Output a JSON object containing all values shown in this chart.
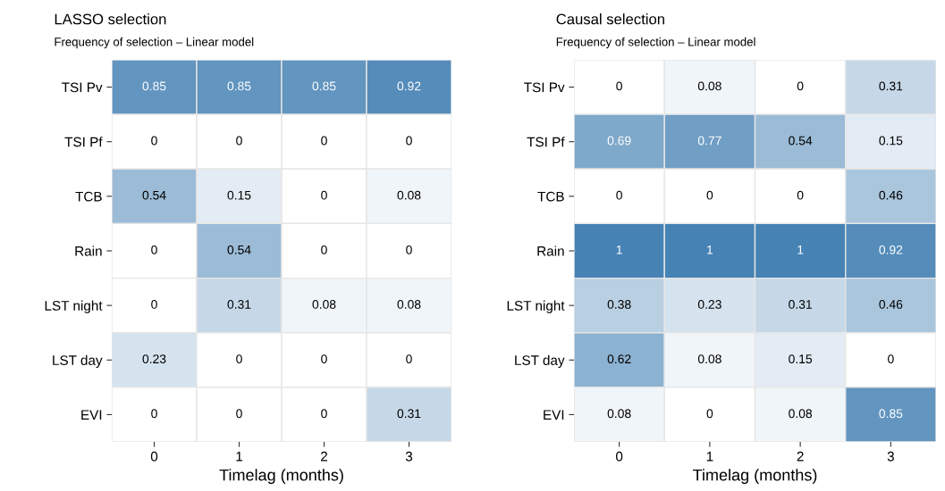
{
  "chart_data": [
    {
      "type": "heatmap",
      "title": "LASSO selection",
      "subtitle": "Frequency of selection – Linear model",
      "xlabel": "Timelag (months)",
      "categories": [
        "0",
        "1",
        "2",
        "3"
      ],
      "y_categories": [
        "TSI Pv",
        "TSI Pf",
        "TCB",
        "Rain",
        "LST night",
        "LST day",
        "EVI"
      ],
      "cells": [
        [
          0.85,
          0.85,
          0.85,
          0.92
        ],
        [
          0,
          0,
          0,
          0
        ],
        [
          0.54,
          0.15,
          0,
          0.08
        ],
        [
          0,
          0.54,
          0,
          0
        ],
        [
          0,
          0.31,
          0.08,
          0.08
        ],
        [
          0.23,
          0,
          0,
          0
        ],
        [
          0,
          0,
          0,
          0.31
        ]
      ],
      "data_labels": true
    },
    {
      "type": "heatmap",
      "title": "Causal selection",
      "subtitle": "Frequency of selection – Linear model",
      "xlabel": "Timelag (months)",
      "categories": [
        "0",
        "1",
        "2",
        "3"
      ],
      "y_categories": [
        "TSI Pv",
        "TSI Pf",
        "TCB",
        "Rain",
        "LST night",
        "LST day",
        "EVI"
      ],
      "cells": [
        [
          0,
          0.08,
          0,
          0.31
        ],
        [
          0.69,
          0.77,
          0.54,
          0.15
        ],
        [
          0,
          0,
          0,
          0.46
        ],
        [
          1,
          1,
          1,
          0.92
        ],
        [
          0.38,
          0.23,
          0.31,
          0.46
        ],
        [
          0.62,
          0.08,
          0.15,
          0
        ],
        [
          0.08,
          0,
          0.08,
          0.85
        ]
      ],
      "data_labels": true
    }
  ]
}
